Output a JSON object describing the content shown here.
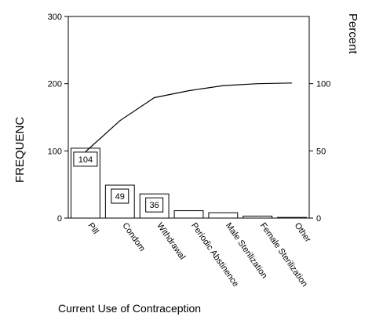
{
  "chart_data": {
    "type": "bar",
    "title": "",
    "xlabel": "Current Use of Contraception",
    "ylabel": "FREQUENC",
    "y2label": "Percent",
    "ylim": [
      0,
      300
    ],
    "y2lim": [
      0,
      150
    ],
    "left_ticks": [
      "0",
      "100",
      "200",
      "300"
    ],
    "right_ticks": [
      "0",
      "50",
      "100"
    ],
    "categories": [
      "Pill",
      "Condom",
      "Withdrawal",
      "Periodic Abstinence",
      "Male Sterilization",
      "Female Sterilization",
      "Other"
    ],
    "series": [
      {
        "values": [
          104,
          49,
          36,
          11,
          8,
          3,
          1
        ],
        "data_labels": [
          "104",
          "49",
          "36",
          "",
          "",
          "",
          ""
        ]
      },
      {
        "type": "line",
        "axis": "right",
        "values": [
          49.3,
          72.5,
          89.6,
          94.8,
          98.6,
          100,
          100.5
        ]
      }
    ],
    "grid": false,
    "legend": "none"
  }
}
